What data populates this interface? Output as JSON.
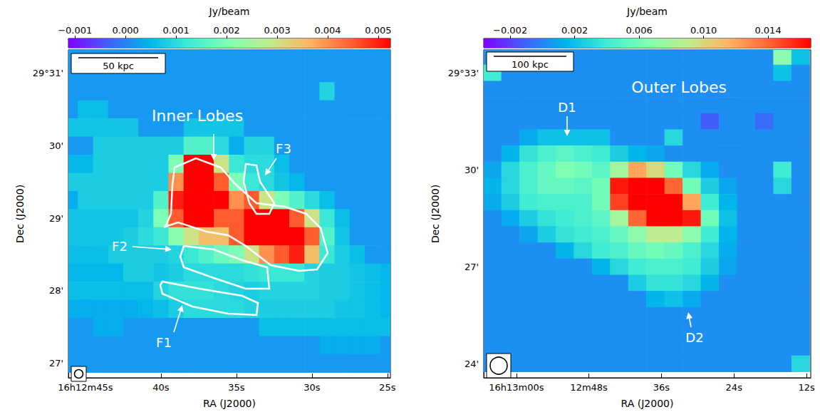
{
  "chart_data": [
    {
      "type": "heatmap",
      "x_label": "RA (J2000)",
      "y_label": "Dec (J2000)",
      "grid": false,
      "xlim": [
        46.13,
        24.8
      ],
      "xticks": [
        {
          "value": 45,
          "label": "16h12m45s"
        },
        {
          "value": 40,
          "label": "40s"
        },
        {
          "value": 35,
          "label": "35s"
        },
        {
          "value": 30,
          "label": "30s"
        },
        {
          "value": 25,
          "label": "25s"
        }
      ],
      "ylim": [
        26.8,
        31.32
      ],
      "yticks": [
        {
          "value": 31,
          "label": "29°31'"
        },
        {
          "value": 30,
          "label": "30'"
        },
        {
          "value": 29,
          "label": "29'"
        },
        {
          "value": 28,
          "label": "28'"
        },
        {
          "value": 27,
          "label": "27'"
        }
      ],
      "colorbar": {
        "label": "Jy/beam",
        "range": [
          -0.00113,
          0.00524
        ],
        "ticks": [
          {
            "value": -0.001,
            "label": "−0.001"
          },
          {
            "value": 0,
            "label": "0.000"
          },
          0.001,
          0.002,
          0.003,
          0.004,
          0.005
        ]
      },
      "annotations": [
        "Inner Lobes",
        "F3",
        "F2",
        "F1"
      ],
      "scale_bar": "50 kpc",
      "x": [
        46,
        45,
        44,
        43,
        42,
        41,
        40,
        39,
        38,
        37,
        36,
        35,
        34,
        33,
        32,
        31,
        30,
        29,
        28,
        27,
        26,
        25
      ],
      "y": [
        31.25,
        31.0,
        30.75,
        30.5,
        30.25,
        30.0,
        29.75,
        29.5,
        29.25,
        29.0,
        28.75,
        28.5,
        28.25,
        28.0,
        27.75,
        27.5,
        27.25,
        27.0
      ],
      "cells": [
        [
          0.0002,
          0.0002,
          0.0002,
          0.0002,
          0.0002,
          0.0002,
          0.0002,
          0.0002,
          0.0002,
          0.0002,
          0.0002,
          0.0002,
          0.0002,
          0.0002,
          0.0002,
          0.0002,
          0.0002,
          0.0002,
          0.0002,
          0.0002,
          0.0002,
          0.0002
        ],
        [
          0.0002,
          0.0002,
          0.0002,
          0.0002,
          0.0002,
          0.0002,
          0.0002,
          0.0002,
          0.0002,
          0.0002,
          0.0002,
          0.0002,
          0.0002,
          0.0002,
          0.0002,
          0.0002,
          0.0002,
          0.0002,
          0.0002,
          0.0002,
          0.0002,
          0.0002
        ],
        [
          0.0002,
          0.0002,
          0.0002,
          0.0002,
          0.0002,
          0.0002,
          0.0002,
          0.0002,
          0.0002,
          0.0002,
          0.0002,
          0.0002,
          0.0002,
          0.0002,
          0.0002,
          0.0002,
          0.0002,
          0.0009,
          0.0002,
          0.0002,
          0.0002,
          0.0002
        ],
        [
          0.0002,
          0.0006,
          0.0006,
          0.0002,
          0.0002,
          0.0002,
          0.0002,
          0.0002,
          0.0002,
          0.0002,
          0.0002,
          0.0002,
          0.0002,
          0.0002,
          0.0002,
          0.0002,
          0.0002,
          0.0002,
          0.0002,
          0.0002,
          0.0002,
          0.0002
        ],
        [
          0.0007,
          0.0007,
          0.0007,
          0.0007,
          0.0007,
          0.0002,
          0.0002,
          0.0002,
          0.0007,
          0.0007,
          0.0007,
          0.0007,
          0.0002,
          0.0002,
          0.0002,
          0.0002,
          0.0002,
          0.0002,
          0.0002,
          0.0002,
          0.0002,
          0.0002
        ],
        [
          0.0002,
          0.0002,
          0.0008,
          0.0008,
          0.0008,
          0.0008,
          0.0008,
          0.0008,
          0.0015,
          0.0015,
          0.001,
          0.0004,
          0.0009,
          0.0009,
          0.0002,
          0.0002,
          0.0002,
          0.0002,
          0.0002,
          0.0002,
          0.0002,
          0.0002
        ],
        [
          0.0005,
          0.0005,
          0.0008,
          0.0008,
          0.0008,
          0.0008,
          0.0008,
          0.002,
          0.0055,
          0.0055,
          0.003,
          0.0012,
          0.001,
          0.001,
          0.0006,
          0.0002,
          0.0002,
          0.0002,
          0.0002,
          0.0002,
          0.0002,
          0.0002
        ],
        [
          0.0008,
          0.0008,
          0.0008,
          0.0008,
          0.0008,
          0.0008,
          0.0008,
          0.004,
          0.0055,
          0.0055,
          0.0045,
          0.002,
          0.0012,
          0.001,
          0.0007,
          0.0005,
          0.0002,
          0.0002,
          0.0002,
          0.0002,
          0.0002,
          0.0002
        ],
        [
          0.0004,
          0.0008,
          0.0008,
          0.0008,
          0.0008,
          0.0008,
          0.0015,
          0.005,
          0.0055,
          0.0055,
          0.0055,
          0.004,
          0.0045,
          0.003,
          0.002,
          0.0015,
          0.001,
          0.0006,
          0.0002,
          0.0002,
          0.0002,
          0.0002
        ],
        [
          0.0007,
          0.0007,
          0.0007,
          0.0007,
          0.0007,
          0.0009,
          0.002,
          0.0045,
          0.0055,
          0.0055,
          0.0045,
          0.0045,
          0.0055,
          0.0055,
          0.0055,
          0.0045,
          0.003,
          0.0012,
          0.0006,
          0.0002,
          0.0002,
          0.0002
        ],
        [
          0.0007,
          0.0007,
          0.0007,
          0.0007,
          0.0008,
          0.001,
          0.0012,
          0.0022,
          0.003,
          0.0035,
          0.0035,
          0.0045,
          0.0055,
          0.0055,
          0.0055,
          0.0055,
          0.0045,
          0.0015,
          0.0007,
          0.0002,
          0.0002,
          0.0002
        ],
        [
          0.0006,
          0.0006,
          0.0006,
          0.0008,
          0.0008,
          0.0008,
          0.0008,
          0.0009,
          0.0012,
          0.0015,
          0.0018,
          0.002,
          0.003,
          0.004,
          0.0045,
          0.005,
          0.0035,
          0.0012,
          0.0008,
          0.0006,
          0.0002,
          0.0002
        ],
        [
          0.0005,
          0.0005,
          0.0005,
          0.0005,
          0.0008,
          0.0008,
          0.0007,
          0.0008,
          0.001,
          0.001,
          0.001,
          0.001,
          0.0011,
          0.0012,
          0.0012,
          0.0012,
          0.0009,
          0.0008,
          0.0008,
          0.0007,
          0.0006,
          0.0005
        ],
        [
          0.0006,
          0.0006,
          0.0006,
          0.0006,
          0.0006,
          0.0006,
          0.0009,
          0.0011,
          0.0011,
          0.0011,
          0.001,
          0.0009,
          0.0008,
          0.0009,
          0.0009,
          0.0009,
          0.0009,
          0.0008,
          0.0008,
          0.0007,
          0.0006,
          0.0005
        ],
        [
          0.0004,
          0.0004,
          0.0004,
          0.0004,
          0.0004,
          0.0005,
          0.0006,
          0.0008,
          0.001,
          0.001,
          0.001,
          0.001,
          0.0009,
          0.0008,
          0.0008,
          0.0008,
          0.0008,
          0.0008,
          0.0007,
          0.0007,
          0.0006,
          0.0005
        ],
        [
          0.0002,
          0.0002,
          0.0004,
          0.0004,
          0.0002,
          0.0002,
          0.0002,
          0.0002,
          0.0002,
          0.0002,
          0.0002,
          0.0002,
          0.0002,
          0.0006,
          0.0006,
          0.0006,
          0.0006,
          0.0006,
          0.0006,
          0.0006,
          0.0006,
          0.0006
        ],
        [
          0.0002,
          0.0002,
          0.0002,
          0.0002,
          0.0002,
          0.0002,
          0.0002,
          0.0002,
          0.0002,
          0.0002,
          0.0002,
          0.0002,
          0.0002,
          0.0002,
          0.0002,
          0.0002,
          0.0002,
          0.0004,
          0.0004,
          0.0004,
          0.0004,
          0.0002
        ],
        [
          0.0002,
          0.0002,
          0.0002,
          0.0002,
          0.0002,
          0.0002,
          0.0002,
          0.0002,
          0.0002,
          0.0002,
          0.0002,
          0.0002,
          0.0002,
          0.0002,
          0.0002,
          0.0002,
          0.0002,
          0.0002,
          0.0002,
          0.0002,
          0.0002,
          0.0002
        ]
      ]
    },
    {
      "type": "heatmap",
      "x_label": "RA (J2000)",
      "y_label": "Dec (J2000)",
      "grid": false,
      "xlim": [
        65.4,
        11.3
      ],
      "xticks": [
        {
          "value": 60,
          "label": "16h13m00s"
        },
        {
          "value": 48,
          "label": "12m48s"
        },
        {
          "value": 36,
          "label": "36s"
        },
        {
          "value": 24,
          "label": "24s"
        },
        {
          "value": 12,
          "label": "12s"
        }
      ],
      "ylim": [
        23.56,
        33.71
      ],
      "yticks": [
        {
          "value": 33,
          "label": "29°33'"
        },
        {
          "value": 30,
          "label": "30'"
        },
        {
          "value": 27,
          "label": "27'"
        },
        {
          "value": 24,
          "label": "24'"
        }
      ],
      "colorbar": {
        "label": "Jy/beam",
        "range": [
          -0.00364,
          0.01665
        ],
        "ticks": [
          {
            "value": -0.002,
            "label": "−0.002"
          },
          0.002,
          0.006,
          {
            "value": 0.01,
            "label": "0.010"
          },
          0.014
        ]
      },
      "annotations": [
        "Outer Lobes",
        "D1",
        "D2"
      ],
      "scale_bar": "100 kpc",
      "x": [
        64,
        61,
        58,
        55,
        52,
        49,
        46,
        43,
        40,
        37,
        34,
        31,
        28,
        25,
        22,
        19,
        16,
        13
      ],
      "y": [
        33.5,
        33.0,
        32.5,
        32.0,
        31.5,
        31.0,
        30.5,
        30.0,
        29.5,
        29.0,
        28.5,
        28.0,
        27.5,
        27.0,
        26.5,
        26.0,
        25.5,
        25.0,
        24.5,
        24.0
      ],
      "cells": [
        [
          0.0003,
          0.0003,
          0.0003,
          0.0003,
          0.0003,
          0.0003,
          0.0003,
          0.0003,
          0.0003,
          0.0003,
          0.0003,
          0.0003,
          0.0003,
          0.0003,
          0.0003,
          0.0003,
          0.007,
          0.002
        ],
        [
          0.004,
          0.0003,
          0.0003,
          0.0003,
          0.0003,
          0.0003,
          0.0003,
          0.0003,
          0.0003,
          0.0003,
          0.0003,
          0.0003,
          0.0003,
          0.0003,
          0.0003,
          0.0003,
          0.002,
          0.0003
        ],
        [
          0.0003,
          0.0003,
          0.0003,
          0.0003,
          0.0003,
          0.0003,
          0.0003,
          0.0003,
          0.0003,
          0.0003,
          0.0003,
          0.0003,
          0.0003,
          0.0003,
          0.0003,
          0.0003,
          0.0003,
          0.0003
        ],
        [
          0.0003,
          0.0003,
          0.0003,
          0.0003,
          0.0003,
          0.0003,
          0.0003,
          0.0003,
          0.0003,
          0.0003,
          0.0003,
          0.0003,
          0.0003,
          0.0003,
          0.0003,
          0.0003,
          0.0003,
          0.0003
        ],
        [
          0.0003,
          0.0003,
          0.0003,
          0.0003,
          0.0003,
          0.0003,
          0.0003,
          0.0003,
          0.0003,
          0.0003,
          0.0003,
          0.0003,
          -0.0012,
          0.0003,
          0.0003,
          -0.0008,
          0.0003,
          0.0003
        ],
        [
          0.0003,
          0.0003,
          0.0012,
          0.002,
          0.002,
          0.002,
          0.002,
          0.0003,
          0.0003,
          0.0003,
          0.003,
          0.0003,
          0.0003,
          0.0003,
          0.0003,
          0.0003,
          0.0003,
          0.0003
        ],
        [
          0.0003,
          0.0015,
          0.0035,
          0.0045,
          0.005,
          0.0045,
          0.004,
          0.0025,
          0.0015,
          0.001,
          0.0003,
          0.0003,
          0.0003,
          0.0003,
          0.0003,
          0.0003,
          0.0003,
          0.0003
        ],
        [
          0.001,
          0.003,
          0.0045,
          0.0055,
          0.0065,
          0.006,
          0.005,
          0.008,
          0.012,
          0.01,
          0.006,
          0.003,
          0.0012,
          0.0003,
          0.0003,
          0.0003,
          0.004,
          0.0003
        ],
        [
          0.0015,
          0.003,
          0.0045,
          0.0055,
          0.0055,
          0.005,
          0.006,
          0.016,
          0.017,
          0.017,
          0.014,
          0.006,
          0.0025,
          0.001,
          0.0003,
          0.0003,
          0.003,
          0.0003
        ],
        [
          0.0012,
          0.0025,
          0.004,
          0.0045,
          0.0045,
          0.0045,
          0.006,
          0.015,
          0.017,
          0.017,
          0.017,
          0.012,
          0.004,
          0.0015,
          0.0003,
          0.0003,
          0.0003,
          0.0003
        ],
        [
          0.0003,
          0.0012,
          0.0025,
          0.0035,
          0.004,
          0.0045,
          0.005,
          0.008,
          0.014,
          0.017,
          0.017,
          0.016,
          0.006,
          0.002,
          0.0003,
          0.0003,
          0.0003,
          0.0003
        ],
        [
          0.0003,
          0.0003,
          0.001,
          0.0025,
          0.0035,
          0.004,
          0.0045,
          0.0055,
          0.007,
          0.009,
          0.009,
          0.007,
          0.004,
          0.0015,
          0.0003,
          0.0003,
          0.0003,
          0.0003
        ],
        [
          0.0003,
          0.0003,
          0.0003,
          0.0003,
          0.0015,
          0.003,
          0.004,
          0.0045,
          0.0055,
          0.006,
          0.0055,
          0.0045,
          0.003,
          0.0012,
          0.0003,
          0.0003,
          0.0003,
          0.0003
        ],
        [
          0.0003,
          0.0003,
          0.0003,
          0.0003,
          0.0003,
          0.0003,
          0.0015,
          0.003,
          0.004,
          0.0045,
          0.0045,
          0.004,
          0.0025,
          0.001,
          0.0003,
          0.0003,
          0.0003,
          0.0003
        ],
        [
          0.0003,
          0.0003,
          0.0003,
          0.0003,
          0.0003,
          0.0003,
          0.0003,
          0.0003,
          0.0025,
          0.0035,
          0.0035,
          0.003,
          0.0015,
          0.0003,
          0.0003,
          0.0003,
          0.0003,
          0.0003
        ],
        [
          0.0003,
          0.0003,
          0.0003,
          0.0003,
          0.0003,
          0.0003,
          0.0003,
          0.0003,
          0.0003,
          0.0015,
          0.002,
          0.0012,
          0.0003,
          0.0003,
          0.0003,
          0.0003,
          0.0003,
          0.0003
        ],
        [
          0.0003,
          0.0003,
          0.0003,
          0.0003,
          0.0003,
          0.0003,
          0.0003,
          0.0003,
          0.0003,
          0.0003,
          0.0003,
          0.0003,
          0.0003,
          0.0003,
          0.0003,
          0.0003,
          0.0003,
          0.0003
        ],
        [
          0.0003,
          0.0003,
          0.0003,
          0.0003,
          0.0003,
          0.0003,
          0.0003,
          0.0003,
          0.0003,
          0.0003,
          0.0003,
          0.0003,
          0.0003,
          0.0003,
          0.0003,
          0.0003,
          0.0003,
          0.0003
        ],
        [
          0.0003,
          0.0003,
          0.0003,
          0.0003,
          0.0003,
          0.0003,
          0.0003,
          0.0003,
          0.0003,
          0.0003,
          0.0003,
          0.0003,
          0.0003,
          0.0003,
          0.0003,
          0.0003,
          0.0003,
          0.0003
        ],
        [
          0.0003,
          0.0003,
          0.0003,
          0.0003,
          0.0003,
          0.0003,
          0.0003,
          0.0003,
          0.0003,
          0.0003,
          0.0003,
          0.0003,
          0.0003,
          0.0003,
          0.0003,
          0.0003,
          0.0003,
          0.003
        ]
      ]
    }
  ]
}
